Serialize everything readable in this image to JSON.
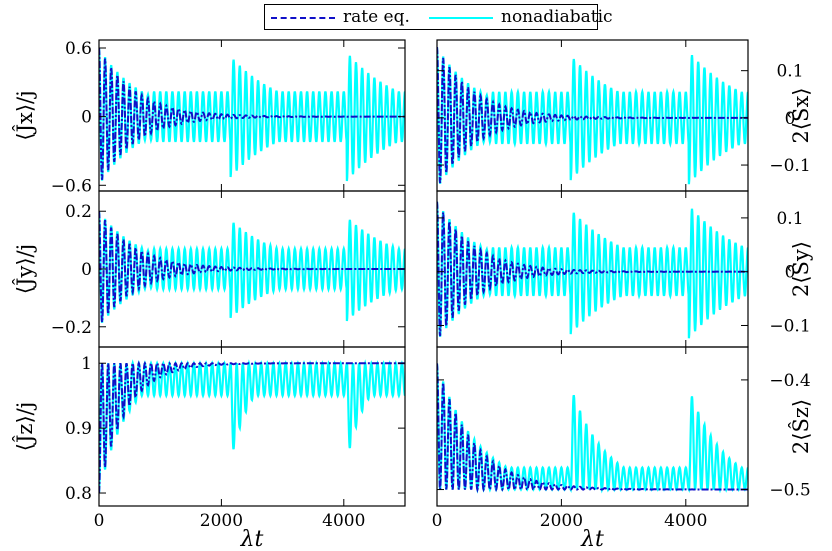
{
  "legend": {
    "rate_label": "rate eq.",
    "nonadiabatic_label": "nonadiabatic"
  },
  "colors": {
    "rate": "#1010c8",
    "nonadiabatic": "#00ffff"
  },
  "chart_data": [
    {
      "type": "line",
      "panel": "Jx",
      "ylabel": "⟨Ĵx⟩/j",
      "x_range": [
        0,
        5000
      ],
      "ylim": [
        -0.65,
        0.67
      ],
      "yticks": [
        {
          "v": 0.6,
          "label": "0.6"
        },
        {
          "v": 0,
          "label": "0"
        },
        {
          "v": -0.6,
          "label": "−0.6"
        }
      ],
      "series": [
        {
          "name": "rate eq.",
          "kind": "decay",
          "center": 0,
          "amp0": 0.6,
          "tau": 600
        },
        {
          "name": "nonadiabatic",
          "kind": "pulsed",
          "center": 0,
          "amp0": 0.6,
          "tau": 700,
          "kick_amp": 0.5,
          "kick_times": [
            2150,
            4050
          ],
          "floor": 0.22
        }
      ]
    },
    {
      "type": "line",
      "panel": "Jy",
      "ylabel": "⟨Ĵy⟩/j",
      "x_range": [
        0,
        5000
      ],
      "ylim": [
        -0.27,
        0.27
      ],
      "yticks": [
        {
          "v": 0.2,
          "label": "0.2"
        },
        {
          "v": 0,
          "label": "0"
        },
        {
          "v": -0.2,
          "label": "−0.2"
        }
      ],
      "series": [
        {
          "name": "rate eq.",
          "kind": "decay",
          "center": 0,
          "amp0": 0.2,
          "tau": 600
        },
        {
          "name": "nonadiabatic",
          "kind": "pulsed",
          "center": 0,
          "amp0": 0.2,
          "tau": 700,
          "kick_amp": 0.16,
          "kick_times": [
            2150,
            4050
          ],
          "floor": 0.07
        }
      ]
    },
    {
      "type": "line",
      "panel": "Jz",
      "ylabel": "⟨Ĵz⟩/j",
      "xlabel": "λt",
      "x_range": [
        0,
        5000
      ],
      "ylim": [
        0.78,
        1.025
      ],
      "yticks": [
        {
          "v": 1,
          "label": "1"
        },
        {
          "v": 0.9,
          "label": "0.9"
        },
        {
          "v": 0.8,
          "label": "0.8"
        }
      ],
      "xticks": [
        {
          "v": 0,
          "label": "0"
        },
        {
          "v": 2000,
          "label": "2000"
        },
        {
          "v": 4000,
          "label": "4000"
        }
      ],
      "series": [
        {
          "name": "rate eq.",
          "kind": "zdecay",
          "top": 1.0,
          "depth0": 0.2,
          "tau": 450
        },
        {
          "name": "nonadiabatic",
          "kind": "zpulsed",
          "top": 1.0,
          "depth0": 0.2,
          "tau": 500,
          "kick_depth": 0.15,
          "kick_times": [
            2150,
            4050
          ],
          "floor": 0.05
        }
      ]
    },
    {
      "type": "line",
      "panel": "Sx",
      "ylabel": "2⟨Ŝx⟩",
      "x_range": [
        0,
        5000
      ],
      "ylim": [
        -0.155,
        0.165
      ],
      "yticks": [
        {
          "v": 0.1,
          "label": "0.1"
        },
        {
          "v": 0,
          "label": "0"
        },
        {
          "v": -0.1,
          "label": "−0.1"
        }
      ],
      "series": [
        {
          "name": "rate eq.",
          "kind": "decay",
          "center": 0,
          "amp0": 0.15,
          "tau": 600
        },
        {
          "name": "nonadiabatic",
          "kind": "pulsed",
          "center": 0,
          "amp0": 0.15,
          "tau": 700,
          "kick_amp": 0.125,
          "kick_times": [
            2150,
            4050
          ],
          "floor": 0.055
        }
      ]
    },
    {
      "type": "line",
      "panel": "Sy",
      "ylabel": "2⟨Ŝy⟩",
      "x_range": [
        0,
        5000
      ],
      "ylim": [
        -0.14,
        0.15
      ],
      "yticks": [
        {
          "v": 0.1,
          "label": "0.1"
        },
        {
          "v": 0,
          "label": "0"
        },
        {
          "v": -0.1,
          "label": "−0.1"
        }
      ],
      "series": [
        {
          "name": "rate eq.",
          "kind": "decay",
          "center": 0,
          "amp0": 0.13,
          "tau": 600
        },
        {
          "name": "nonadiabatic",
          "kind": "pulsed",
          "center": 0,
          "amp0": 0.13,
          "tau": 700,
          "kick_amp": 0.11,
          "kick_times": [
            2150,
            4050
          ],
          "floor": 0.045
        }
      ]
    },
    {
      "type": "line",
      "panel": "Sz",
      "ylabel": "2⟨Ŝz⟩",
      "xlabel": "λt",
      "x_range": [
        0,
        5000
      ],
      "ylim": [
        -0.515,
        -0.37
      ],
      "yticks": [
        {
          "v": -0.4,
          "label": "−0.4"
        },
        {
          "v": -0.5,
          "label": "−0.5"
        }
      ],
      "xticks": [
        {
          "v": 0,
          "label": "0"
        },
        {
          "v": 2000,
          "label": "2000"
        },
        {
          "v": 4000,
          "label": "4000"
        }
      ],
      "series": [
        {
          "name": "rate eq.",
          "kind": "sdecay",
          "bottom": -0.5,
          "height0": 0.115,
          "tau": 600
        },
        {
          "name": "nonadiabatic",
          "kind": "spulsed",
          "bottom": -0.5,
          "height0": 0.115,
          "tau": 650,
          "kick_height": 0.09,
          "kick_times": [
            2150,
            4050
          ],
          "floor": 0.02
        }
      ]
    }
  ]
}
